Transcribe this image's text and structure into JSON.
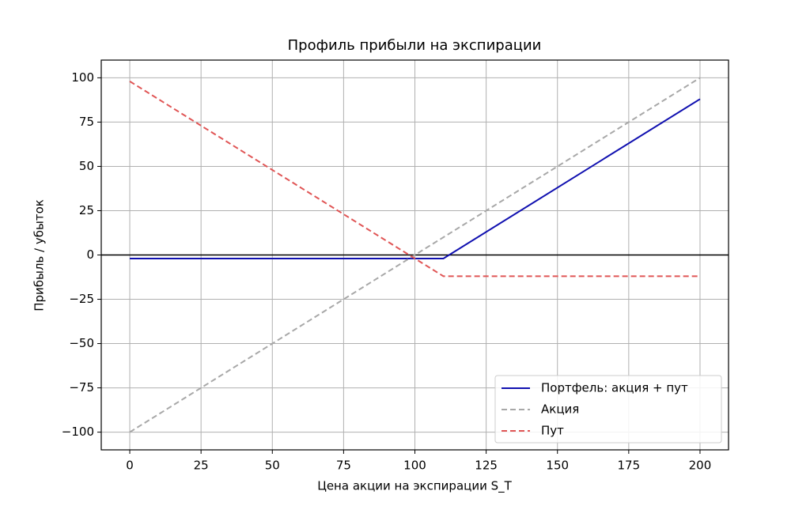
{
  "chart_data": {
    "type": "line",
    "title": "Профиль прибыли на экспирации",
    "x_label": "Цена акции на экспирации S_T",
    "y_label": "Прибыль / убыток",
    "series": [
      {
        "name": "Портфель: акция + пут",
        "color": "#1010b0",
        "dash": "solid",
        "x": [
          0,
          110,
          200
        ],
        "values": [
          -2,
          -2,
          88
        ]
      },
      {
        "name": "Акция",
        "color": "#a8a8a8",
        "dash": "dashed",
        "x": [
          0,
          200
        ],
        "values": [
          -100,
          100
        ]
      },
      {
        "name": "Пут",
        "color": "#e05555",
        "dash": "dashed",
        "x": [
          0,
          110,
          200
        ],
        "values": [
          98,
          -12,
          -12
        ]
      }
    ],
    "reference_line": 0,
    "xlim": [
      -10,
      210
    ],
    "ylim": [
      -110,
      110
    ],
    "xticks": [
      0,
      25,
      50,
      75,
      100,
      125,
      150,
      175,
      200
    ],
    "yticks": [
      {
        "value": -100,
        "label": "−100"
      },
      {
        "value": -75,
        "label": "−75"
      },
      {
        "value": -50,
        "label": "−50"
      },
      {
        "value": -25,
        "label": "−25"
      },
      0,
      25,
      50,
      75,
      100
    ],
    "grid": true,
    "legend": "lower right"
  }
}
